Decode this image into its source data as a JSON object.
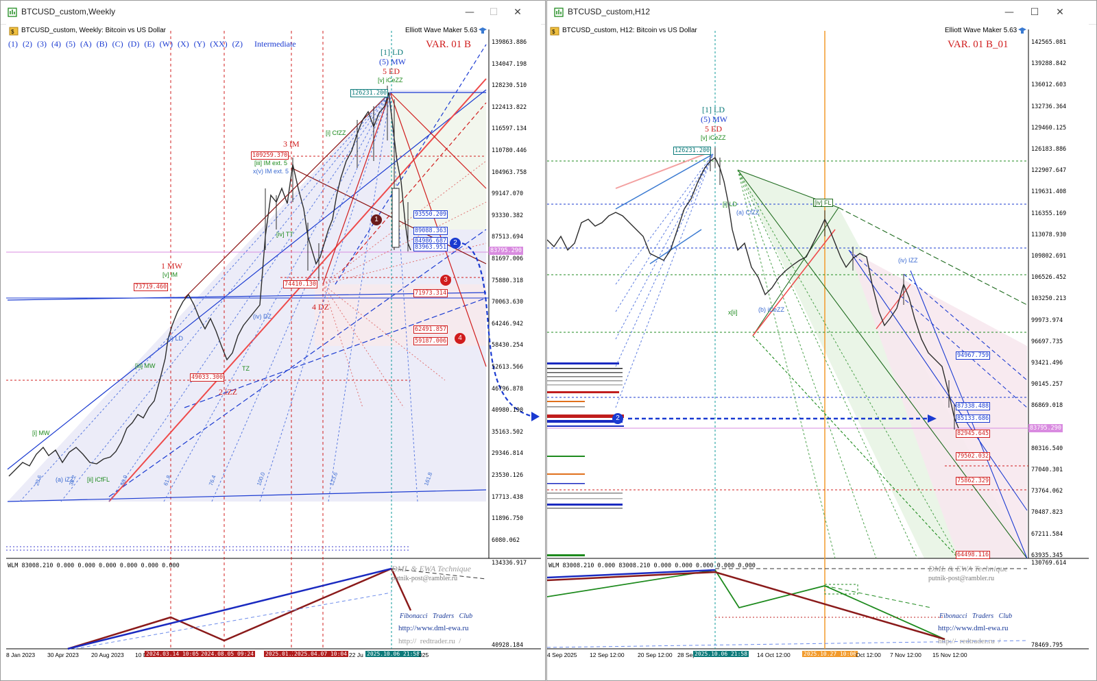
{
  "colors": {
    "bull": "#2b2b2b",
    "bear": "#2b2b2b",
    "blue": "#1a3ad1",
    "red": "#d01c1c",
    "green": "#1d8a1d",
    "pink": "#c040c0",
    "teal": "#0b7a7a",
    "priceTag": "#d98be0"
  },
  "left": {
    "window_title": "BTCUSD_custom,Weekly",
    "header": "BTCUSD_custom, Weekly:  Bitcoin vs US Dollar",
    "tool": "Elliott Wave Maker 5.63",
    "variant": "VAR. 01 B",
    "degree_buttons": [
      "(1)",
      "(2)",
      "(3)",
      "(4)",
      "(5)",
      "(A)",
      "(B)",
      "(C)",
      "(D)",
      "(E)",
      "(W)",
      "(X)",
      "(Y)",
      "(XX)",
      "(Z)"
    ],
    "degree_label": "Intermediate",
    "price_axis": [
      "139863.886",
      "134047.198",
      "128230.510",
      "122413.822",
      "116597.134",
      "110780.446",
      "104963.758",
      "99147.070",
      "93330.382",
      "87513.694",
      "81697.006",
      "75880.318",
      "70063.630",
      "64246.942",
      "58430.254",
      "52613.566",
      "46796.878",
      "40980.190",
      "35163.502",
      "29346.814",
      "23530.126",
      "17713.438",
      "11896.750",
      "6080.062"
    ],
    "current_price": "83795.290",
    "price_labels": {
      "p126231": "126231.200",
      "p109259": "109259.370",
      "p73719": "73719.460",
      "p74410": "74410.130",
      "p49033": "49033.300",
      "b93550": "93550.209",
      "b89088": "89088.363",
      "b84": "84986.687",
      "b83": "83963.951",
      "r71973": "71973.314",
      "r62": "62491.857",
      "r59": "59187.006"
    },
    "waves": {
      "top1": "[1] LD",
      "top2": "(5) MW",
      "top3": "5 ED",
      "top4": "[v] iCeZZ",
      "im3": "3 IM",
      "iii_im": "[iii] IM ext. 5",
      "x_im": "x(v) IM ext. 5",
      "mw1": "1 MW",
      "v_im": "[v] IM",
      "dz4": "4 DZ",
      "izz2": "2 iZZ",
      "i_mw": "[i] MW",
      "lbl_iii_mw": "[iii] MW",
      "lbl_izz_a": "(a) iZZ",
      "lbl_icfl": "[ii] iCfFL",
      "lbl_cfzz": "[i] CfZZ",
      "lbl_ld": "(i) LD",
      "lbl_dz": "(iv) DZ",
      "lbl_tt": "[iv] TT",
      "lbl_tz": "TZ"
    },
    "fib_labels": [
      "23.6",
      "38.2",
      "50.0",
      "61.8",
      "76.4",
      "100.0",
      "123.6",
      "161.8"
    ],
    "date_axis": [
      "8 Jan 2023",
      "30 Apr 2023",
      "20 Aug 2023",
      "10 D"
    ],
    "date_tags": [
      "2024.03.14 10:05",
      "2024.08.05 09:24",
      "2025.01.2",
      "2025.04.07 10:04",
      "22 Ju",
      "2025.10.06 21:58",
      "025"
    ],
    "indicator_label": "WLM 83008.210 0.000 0.000 0.000 0.000 0.000 0.000",
    "ind_axis_top": "134336.917",
    "ind_axis_bottom": "40928.184",
    "watermark": {
      "line1": "DML & EWA Technique",
      "line2": "putnik-post@rambler.ru",
      "line3": "Fibonacci   Traders   Club",
      "line4": "http://www.dml-ewa.ru",
      "line5": "http://  redtrader.ru  /"
    },
    "markers": [
      "1",
      "2",
      "3",
      "4"
    ]
  },
  "right": {
    "window_title": "BTCUSD_custom,H12",
    "header": "BTCUSD_custom, H12:  Bitcoin vs US Dollar",
    "tool": "Elliott Wave Maker 5.63",
    "variant": "VAR. 01 B_01",
    "price_axis": [
      "142565.081",
      "139288.842",
      "136012.603",
      "132736.364",
      "129460.125",
      "126183.886",
      "122907.647",
      "119631.408",
      "116355.169",
      "113078.930",
      "109802.691",
      "106526.452",
      "103250.213",
      "99973.974",
      "96697.735",
      "93421.496",
      "90145.257",
      "86869.018",
      "83592.779",
      "80316.540",
      "77040.301",
      "73764.062",
      "70487.823",
      "67211.584",
      "63935.345"
    ],
    "current_price": "83795.290",
    "price_labels": {
      "p126231": "126231.200",
      "b94967": "94967.759",
      "b87": "87338.488",
      "b85": "85133.686",
      "r82": "82945.645",
      "r79": "79502.032",
      "r75": "75862.329",
      "r64": "64498.116"
    },
    "waves": {
      "top1": "[1] LD",
      "top2": "(5) MW",
      "top3": "5 ED",
      "top4": "[v] iCeZZ",
      "ivFL": "[iv] FL",
      "iv_izz": "(iv) IZZ",
      "a_cfzz": "(a) CfZZ",
      "b_cezz": "(b) iCeZZ",
      "i_ld": "[i] LD",
      "xii": "x[ii]"
    },
    "date_axis": [
      "4 Sep 2025",
      "12 Sep 12:00",
      "20 Sep 12:00",
      "28 Sep",
      "14 Oct 12:00",
      "Oct 12:00",
      "7 Nov 12:00",
      "15 Nov 12:00"
    ],
    "date_tags": [
      "2025.10.06 21:58",
      "2025.10.27 10:06"
    ],
    "indicator_label": "WLM 83008.210 0.000 83008.210 0.000 0.000 0.000 0.000 0.000",
    "ind_axis_top": "130769.614",
    "ind_axis_bottom": "78469.795",
    "watermark": {
      "line1": "DML & EWA Technique",
      "line2": "putnik-post@rambler.ru",
      "line3": "Fibonacci   Traders   Club",
      "line4": "http://www.dml-ewa.ru",
      "line5": "http://  redtrader.ru  /"
    },
    "markers": [
      "2"
    ]
  }
}
